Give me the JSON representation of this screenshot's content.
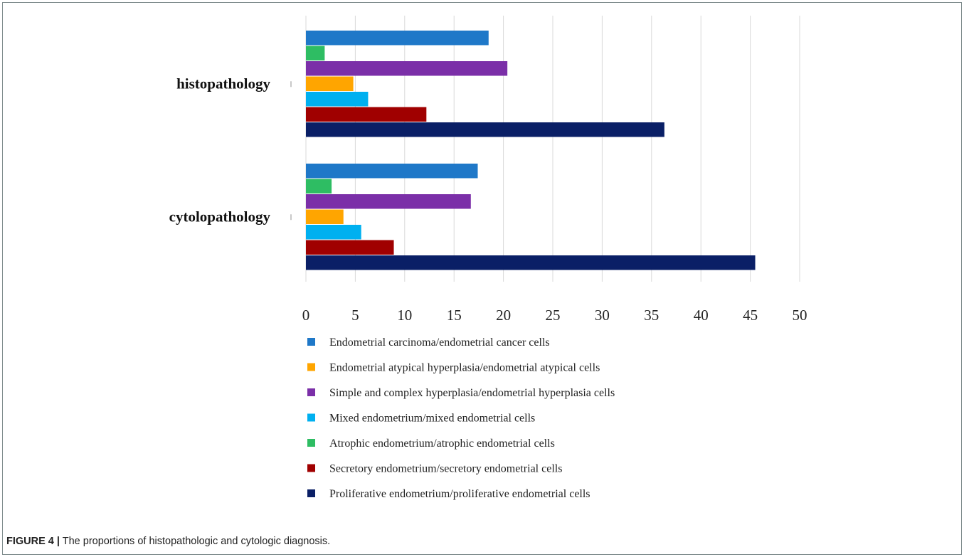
{
  "caption": {
    "figure_label": "FIGURE 4 |",
    "text": "The proportions of histopathologic and cytologic diagnosis."
  },
  "chart_data": {
    "type": "bar",
    "orientation": "horizontal",
    "categories": [
      "histopathology",
      "cytolopathology"
    ],
    "series": [
      {
        "name": "Endometrial carcinoma/endometrial  cancer cells",
        "color": "#1f78c8",
        "values": [
          18.5,
          17.4
        ]
      },
      {
        "name": "Atrophic endometrium/atrophic endometrial cells",
        "color": "#2ebd63",
        "values": [
          1.9,
          2.6
        ]
      },
      {
        "name": "Simple and complex hyperplasia/endometrial  hyperplasia cells",
        "color": "#7b2fa8",
        "values": [
          20.4,
          16.7
        ]
      },
      {
        "name": "Endometrial atypical hyperplasia/endometrial  atypical cells",
        "color": "#ffa500",
        "values": [
          4.8,
          3.8
        ]
      },
      {
        "name": "Mixed endometrium/mixed endometrial cells",
        "color": "#00b0f0",
        "values": [
          6.3,
          5.6
        ]
      },
      {
        "name": "Secretory endometrium/secretory  endometrial cells",
        "color": "#a00000",
        "values": [
          12.2,
          8.9
        ]
      },
      {
        "name": "Proliferative endometrium/proliferative  endometrial cells",
        "color": "#0a1f66",
        "values": [
          36.3,
          45.5
        ]
      }
    ],
    "legend_order": [
      0,
      3,
      2,
      4,
      1,
      5,
      6
    ],
    "xlim": [
      0,
      50
    ],
    "xticks": [
      "0",
      "5",
      "10",
      "15",
      "20",
      "25",
      "30",
      "35",
      "40",
      "45",
      "50"
    ],
    "xlabel": "",
    "ylabel": "",
    "title": "",
    "grid": "vertical",
    "legend_position": "bottom"
  }
}
